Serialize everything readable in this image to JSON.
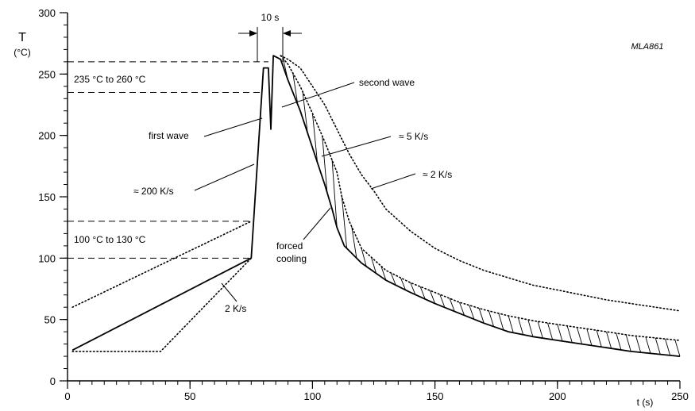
{
  "chart_data": {
    "type": "line",
    "figure_id": "MLA861",
    "xlabel": "t (s)",
    "ylabel": "T",
    "ylabel_unit": "(°C)",
    "xlim": [
      0,
      250
    ],
    "ylim": [
      0,
      300
    ],
    "x_major_ticks": [
      0,
      50,
      100,
      150,
      200,
      250
    ],
    "y_major_ticks": [
      0,
      50,
      100,
      150,
      200,
      250,
      300
    ],
    "x_minor_tick_step": 5,
    "y_minor_tick_step": 10,
    "grid": false,
    "series": [
      {
        "style": "solid",
        "points": [
          [
            2,
            25
          ],
          [
            75,
            100
          ],
          [
            80,
            255
          ],
          [
            82,
            255
          ],
          [
            83,
            205
          ],
          [
            84,
            265
          ],
          [
            87,
            262
          ],
          [
            90,
            245
          ],
          [
            95,
            220
          ],
          [
            100,
            190
          ],
          [
            105,
            160
          ],
          [
            108,
            140
          ],
          [
            110,
            125
          ],
          [
            113,
            110
          ],
          [
            120,
            96
          ],
          [
            130,
            82
          ],
          [
            140,
            72
          ],
          [
            150,
            63
          ],
          [
            160,
            55
          ],
          [
            170,
            47
          ],
          [
            180,
            40
          ],
          [
            190,
            36
          ],
          [
            200,
            33
          ],
          [
            210,
            30
          ],
          [
            220,
            27
          ],
          [
            230,
            24
          ],
          [
            240,
            22
          ],
          [
            250,
            20
          ]
        ]
      },
      {
        "style": "dotted",
        "points": [
          [
            2,
            60
          ],
          [
            75,
            130
          ]
        ]
      },
      {
        "style": "dotted",
        "points": [
          [
            2,
            24
          ],
          [
            38,
            24
          ],
          [
            75,
            100
          ]
        ]
      },
      {
        "style": "dotted",
        "points": [
          [
            87,
            265
          ],
          [
            90,
            262
          ],
          [
            95,
            255
          ],
          [
            100,
            240
          ],
          [
            105,
            225
          ],
          [
            110,
            205
          ],
          [
            115,
            185
          ],
          [
            120,
            168
          ],
          [
            125,
            155
          ],
          [
            130,
            140
          ],
          [
            140,
            122
          ],
          [
            150,
            108
          ],
          [
            160,
            98
          ],
          [
            170,
            90
          ],
          [
            180,
            84
          ],
          [
            190,
            78
          ],
          [
            200,
            74
          ],
          [
            210,
            70
          ],
          [
            220,
            66
          ],
          [
            230,
            63
          ],
          [
            240,
            60
          ],
          [
            250,
            57
          ]
        ]
      },
      {
        "style": "dotted",
        "points": [
          [
            87,
            265
          ],
          [
            90,
            258
          ],
          [
            95,
            240
          ],
          [
            100,
            218
          ],
          [
            105,
            195
          ],
          [
            110,
            170
          ],
          [
            112,
            150
          ],
          [
            115,
            130
          ],
          [
            120,
            108
          ],
          [
            130,
            90
          ],
          [
            140,
            80
          ],
          [
            150,
            72
          ],
          [
            160,
            64
          ],
          [
            170,
            58
          ],
          [
            180,
            53
          ],
          [
            190,
            49
          ],
          [
            200,
            46
          ],
          [
            210,
            43
          ],
          [
            220,
            40
          ],
          [
            230,
            37
          ],
          [
            240,
            35
          ],
          [
            250,
            33
          ]
        ]
      }
    ],
    "reference_lines": [
      {
        "axis": "y",
        "value": 260,
        "x_to": 82
      },
      {
        "axis": "y",
        "value": 235,
        "x_to": 80
      },
      {
        "axis": "y",
        "value": 130,
        "x_to": 75
      },
      {
        "axis": "y",
        "value": 100,
        "x_to": 75
      }
    ],
    "annotations": {
      "window_10s": "10 s",
      "range_peak": "235 °C  to  260 °C",
      "range_preheat": "100 °C  to  130 °C",
      "first_wave": "first wave",
      "second_wave": "second wave",
      "slope_200": "≈ 200 K/s",
      "slope_5": "≈ 5 K/s",
      "slope_2_right": "≈ 2 K/s",
      "slope_2_left": "2 K/s",
      "forced_cooling_1": "forced",
      "forced_cooling_2": "cooling"
    }
  }
}
